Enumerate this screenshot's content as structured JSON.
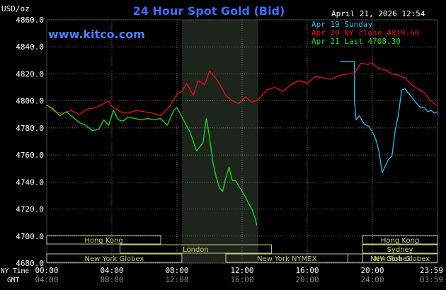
{
  "header": {
    "title": "24 Hour Spot Gold (Bid)",
    "unit": "USD/oz",
    "datetime": "April 21, 2026 12:54",
    "site": "www.kitco.com"
  },
  "colors": {
    "background": "#000000",
    "title": "#3f6fff",
    "site": "#4f7fff",
    "apr19": "#33bbee",
    "apr20": "#ee1111",
    "apr21": "#22dd22",
    "grid": "#ffffff",
    "session_box": "#cccc88",
    "nymex_shade": "#1c241c"
  },
  "chart_data": {
    "type": "line",
    "title": "24 Hour Spot Gold (Bid)",
    "ylabel": "USD/oz",
    "ylim": [
      4680,
      4860
    ],
    "xlim": [
      0,
      24
    ],
    "y_ticks": [
      "4860.0",
      "4840.0",
      "4820.0",
      "4800.0",
      "4780.0",
      "4760.0",
      "4740.0",
      "4720.0",
      "4700.0",
      "4680.0"
    ],
    "x_ticks_ny": [
      "00:00",
      "04:00",
      "08:00",
      "12:00",
      "16:00",
      "20:00",
      "23:59"
    ],
    "x_ticks_gmt": [
      "04:00",
      "08:00",
      "12:00",
      "16:00",
      "20:00",
      "24:00",
      "03:59"
    ],
    "x_axis_label_ny": "NY Time",
    "x_axis_label_gmt": "GMT",
    "grid": true,
    "legend": "top-right",
    "series": [
      {
        "name": "Apr 19 Sunday",
        "key": "apr19",
        "x": [
          18.0,
          18.9,
          18.9,
          19.0,
          19.2,
          19.5,
          19.8,
          20.0,
          20.2,
          20.4,
          20.6,
          20.8,
          21.0,
          21.2,
          21.4,
          21.6,
          21.8,
          22.0,
          22.2,
          22.4,
          22.6,
          22.8,
          23.0,
          23.2,
          23.4,
          23.6,
          23.8,
          24.0
        ],
        "values": [
          4829,
          4829,
          4800,
          4786,
          4789,
          4783,
          4781,
          4777,
          4772,
          4763,
          4747,
          4752,
          4757,
          4759,
          4778,
          4790,
          4808,
          4809,
          4806,
          4803,
          4800,
          4797,
          4795,
          4795,
          4792,
          4793,
          4791,
          4792
        ]
      },
      {
        "name": "Apr 20 NY close 4819.60",
        "key": "apr20",
        "x": [
          0.0,
          0.5,
          1.0,
          1.5,
          2.0,
          2.5,
          3.0,
          3.5,
          3.8,
          4.0,
          4.5,
          5.0,
          5.5,
          6.0,
          6.5,
          7.0,
          7.5,
          8.0,
          8.3,
          8.6,
          9.0,
          9.3,
          9.7,
          10.0,
          10.3,
          10.6,
          11.0,
          11.4,
          11.8,
          12.2,
          12.6,
          13.0,
          13.5,
          14.0,
          14.5,
          15.0,
          15.5,
          16.0,
          16.5,
          17.0,
          17.5,
          18.0,
          18.5,
          18.9,
          19.3,
          19.7,
          20.0,
          20.4,
          20.8,
          21.2,
          21.6,
          22.0,
          22.4,
          22.8,
          23.2,
          23.6,
          24.0
        ],
        "values": [
          4797,
          4792,
          4791,
          4793,
          4790,
          4794,
          4795,
          4798,
          4800,
          4796,
          4792,
          4791,
          4793,
          4792,
          4791,
          4789,
          4795,
          4805,
          4807,
          4813,
          4804,
          4815,
          4812,
          4822,
          4818,
          4813,
          4804,
          4800,
          4798,
          4803,
          4799,
          4801,
          4808,
          4810,
          4807,
          4812,
          4815,
          4813,
          4818,
          4817,
          4816,
          4819,
          4820,
          4820,
          4828,
          4827,
          4828,
          4824,
          4823,
          4820,
          4819,
          4817,
          4812,
          4809,
          4806,
          4800,
          4796
        ]
      },
      {
        "name": "Apr 21 Last 4708.30",
        "key": "apr21",
        "x": [
          0.0,
          0.4,
          0.8,
          1.2,
          1.6,
          2.0,
          2.4,
          2.8,
          3.2,
          3.5,
          3.8,
          4.1,
          4.4,
          4.7,
          5.0,
          5.4,
          5.8,
          6.2,
          6.6,
          7.0,
          7.4,
          7.8,
          8.0,
          8.4,
          8.8,
          9.2,
          9.6,
          9.8,
          10.0,
          10.2,
          10.4,
          10.6,
          10.8,
          11.0,
          11.2,
          11.4,
          11.6,
          11.8,
          12.0,
          12.2,
          12.4,
          12.6,
          12.8,
          12.9
        ],
        "values": [
          4797,
          4794,
          4789,
          4792,
          4788,
          4784,
          4782,
          4778,
          4779,
          4786,
          4782,
          4793,
          4786,
          4785,
          4788,
          4787,
          4786,
          4787,
          4786,
          4787,
          4782,
          4793,
          4795,
          4786,
          4777,
          4763,
          4769,
          4787,
          4773,
          4755,
          4744,
          4736,
          4733,
          4743,
          4751,
          4741,
          4741,
          4737,
          4733,
          4729,
          4724,
          4720,
          4713,
          4708
        ]
      }
    ]
  },
  "sessions": [
    {
      "label": "Hong Kong",
      "start": 0.0,
      "end": 7.0,
      "row": 0
    },
    {
      "label": "London",
      "start": 4.5,
      "end": 13.8,
      "row": 1
    },
    {
      "label": "New York Globex",
      "start": 0.0,
      "end": 8.3,
      "row": 2
    },
    {
      "label": "New York NYMEX",
      "start": 11.0,
      "end": 18.5,
      "row": 2
    },
    {
      "label": "NY Globex",
      "start": 18.5,
      "end": 24.0,
      "row": 2
    },
    {
      "label": "Hong Kong",
      "start": 19.4,
      "end": 24.0,
      "row": 0
    },
    {
      "label": "Sydney",
      "start": 19.4,
      "end": 24.0,
      "row": 1
    },
    {
      "label": "New York Globex",
      "start": 19.4,
      "end": 24.0,
      "row": 2
    }
  ],
  "nymex_window": [
    8.3,
    13.0
  ]
}
